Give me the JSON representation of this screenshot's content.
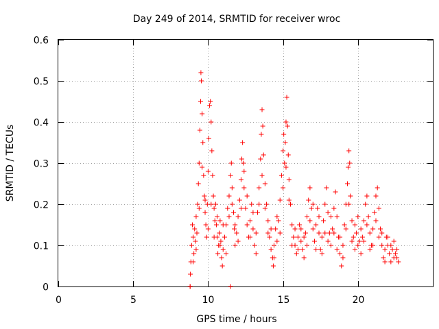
{
  "chart_data": {
    "type": "scatter",
    "title": "Day 249 of 2014, SRMTID for receiver wroc",
    "xlabel": "GPS time / hours",
    "ylabel": "SRMTID / TECUs",
    "xlim": [
      0,
      25
    ],
    "ylim": [
      0,
      0.6
    ],
    "xticks": [
      0,
      5,
      10,
      15,
      20
    ],
    "xtick_labels": [
      "0",
      "5",
      "10",
      "15",
      "20"
    ],
    "yticks": [
      0,
      0.1,
      0.2,
      0.3,
      0.4,
      0.5,
      0.6
    ],
    "ytick_labels": [
      "0",
      "0.1",
      "0.2",
      "0.3",
      "0.4",
      "0.5",
      "0.6"
    ],
    "grid": true,
    "marker": "+",
    "color": "#ff0000",
    "series": [
      {
        "name": "SRMTID",
        "points": [
          [
            8.8,
            0.0
          ],
          [
            8.82,
            0.03
          ],
          [
            8.85,
            0.06
          ],
          [
            8.9,
            0.1
          ],
          [
            8.95,
            0.15
          ],
          [
            9.0,
            0.12
          ],
          [
            9.05,
            0.08
          ],
          [
            9.1,
            0.14
          ],
          [
            9.15,
            0.11
          ],
          [
            9.2,
            0.17
          ],
          [
            9.25,
            0.13
          ],
          [
            9.3,
            0.2
          ],
          [
            9.35,
            0.25
          ],
          [
            9.4,
            0.3
          ],
          [
            9.45,
            0.38
          ],
          [
            9.5,
            0.45
          ],
          [
            9.52,
            0.52
          ],
          [
            9.55,
            0.5
          ],
          [
            9.6,
            0.42
          ],
          [
            9.65,
            0.35
          ],
          [
            9.7,
            0.27
          ],
          [
            9.75,
            0.22
          ],
          [
            9.8,
            0.18
          ],
          [
            9.85,
            0.15
          ],
          [
            9.9,
            0.12
          ],
          [
            9.95,
            0.2
          ],
          [
            10.0,
            0.28
          ],
          [
            10.05,
            0.36
          ],
          [
            10.1,
            0.44
          ],
          [
            10.15,
            0.45
          ],
          [
            10.2,
            0.4
          ],
          [
            10.25,
            0.33
          ],
          [
            10.3,
            0.27
          ],
          [
            10.35,
            0.22
          ],
          [
            10.4,
            0.19
          ],
          [
            10.45,
            0.16
          ],
          [
            10.5,
            0.2
          ],
          [
            10.55,
            0.15
          ],
          [
            10.6,
            0.12
          ],
          [
            10.65,
            0.08
          ],
          [
            10.7,
            0.1
          ],
          [
            10.75,
            0.13
          ],
          [
            10.8,
            0.16
          ],
          [
            10.85,
            0.11
          ],
          [
            10.9,
            0.07
          ],
          [
            10.95,
            0.05
          ],
          [
            11.0,
            0.09
          ],
          [
            11.1,
            0.12
          ],
          [
            11.2,
            0.15
          ],
          [
            11.3,
            0.19
          ],
          [
            11.4,
            0.22
          ],
          [
            11.5,
            0.27
          ],
          [
            11.55,
            0.3
          ],
          [
            11.6,
            0.24
          ],
          [
            11.7,
            0.18
          ],
          [
            11.75,
            0.14
          ],
          [
            11.8,
            0.1
          ],
          [
            11.9,
            0.13
          ],
          [
            12.0,
            0.17
          ],
          [
            12.1,
            0.21
          ],
          [
            12.2,
            0.26
          ],
          [
            12.25,
            0.31
          ],
          [
            12.3,
            0.35
          ],
          [
            12.35,
            0.3
          ],
          [
            12.4,
            0.24
          ],
          [
            12.5,
            0.19
          ],
          [
            12.6,
            0.15
          ],
          [
            12.7,
            0.12
          ],
          [
            12.8,
            0.16
          ],
          [
            12.9,
            0.2
          ],
          [
            13.0,
            0.14
          ],
          [
            13.1,
            0.1
          ],
          [
            13.2,
            0.13
          ],
          [
            13.3,
            0.18
          ],
          [
            13.4,
            0.24
          ],
          [
            13.5,
            0.31
          ],
          [
            13.55,
            0.37
          ],
          [
            13.6,
            0.43
          ],
          [
            13.65,
            0.39
          ],
          [
            13.7,
            0.32
          ],
          [
            13.8,
            0.25
          ],
          [
            13.9,
            0.2
          ],
          [
            14.0,
            0.16
          ],
          [
            14.1,
            0.12
          ],
          [
            14.2,
            0.09
          ],
          [
            14.3,
            0.07
          ],
          [
            14.35,
            0.05
          ],
          [
            14.4,
            0.1
          ],
          [
            14.5,
            0.14
          ],
          [
            14.6,
            0.11
          ],
          [
            14.7,
            0.16
          ],
          [
            14.8,
            0.21
          ],
          [
            14.9,
            0.27
          ],
          [
            15.0,
            0.33
          ],
          [
            15.05,
            0.37
          ],
          [
            15.1,
            0.3
          ],
          [
            15.15,
            0.35
          ],
          [
            15.2,
            0.4
          ],
          [
            15.25,
            0.46
          ],
          [
            15.3,
            0.39
          ],
          [
            15.35,
            0.32
          ],
          [
            15.4,
            0.26
          ],
          [
            15.5,
            0.2
          ],
          [
            15.6,
            0.15
          ],
          [
            15.7,
            0.12
          ],
          [
            15.8,
            0.1
          ],
          [
            15.9,
            0.08
          ],
          [
            16.0,
            0.12
          ],
          [
            16.1,
            0.15
          ],
          [
            16.2,
            0.11
          ],
          [
            16.3,
            0.09
          ],
          [
            16.4,
            0.07
          ],
          [
            16.5,
            0.13
          ],
          [
            16.6,
            0.17
          ],
          [
            16.7,
            0.21
          ],
          [
            16.8,
            0.24
          ],
          [
            16.9,
            0.19
          ],
          [
            17.0,
            0.14
          ],
          [
            17.1,
            0.11
          ],
          [
            17.2,
            0.15
          ],
          [
            17.3,
            0.19
          ],
          [
            17.4,
            0.13
          ],
          [
            17.5,
            0.09
          ],
          [
            17.6,
            0.12
          ],
          [
            17.7,
            0.16
          ],
          [
            17.8,
            0.2
          ],
          [
            17.9,
            0.24
          ],
          [
            18.0,
            0.18
          ],
          [
            18.1,
            0.13
          ],
          [
            18.2,
            0.1
          ],
          [
            18.3,
            0.14
          ],
          [
            18.4,
            0.19
          ],
          [
            18.5,
            0.23
          ],
          [
            18.6,
            0.17
          ],
          [
            18.7,
            0.12
          ],
          [
            18.8,
            0.08
          ],
          [
            18.9,
            0.05
          ],
          [
            19.0,
            0.1
          ],
          [
            19.1,
            0.15
          ],
          [
            19.2,
            0.2
          ],
          [
            19.3,
            0.25
          ],
          [
            19.35,
            0.29
          ],
          [
            19.4,
            0.33
          ],
          [
            19.45,
            0.3
          ],
          [
            19.5,
            0.22
          ],
          [
            19.6,
            0.16
          ],
          [
            19.7,
            0.12
          ],
          [
            19.8,
            0.09
          ],
          [
            19.9,
            0.13
          ],
          [
            20.0,
            0.17
          ],
          [
            20.1,
            0.11
          ],
          [
            20.2,
            0.08
          ],
          [
            20.3,
            0.12
          ],
          [
            20.4,
            0.16
          ],
          [
            20.5,
            0.2
          ],
          [
            20.6,
            0.22
          ],
          [
            20.7,
            0.17
          ],
          [
            20.8,
            0.13
          ],
          [
            20.9,
            0.1
          ],
          [
            21.0,
            0.14
          ],
          [
            21.1,
            0.18
          ],
          [
            21.2,
            0.22
          ],
          [
            21.3,
            0.24
          ],
          [
            21.4,
            0.19
          ],
          [
            21.5,
            0.14
          ],
          [
            21.6,
            0.1
          ],
          [
            21.7,
            0.07
          ],
          [
            21.8,
            0.09
          ],
          [
            21.9,
            0.12
          ],
          [
            22.0,
            0.1
          ],
          [
            22.1,
            0.08
          ],
          [
            22.2,
            0.06
          ],
          [
            22.3,
            0.09
          ],
          [
            22.4,
            0.11
          ],
          [
            22.5,
            0.08
          ],
          [
            22.6,
            0.07
          ],
          [
            22.7,
            0.06
          ],
          [
            9.0,
            0.06
          ],
          [
            9.2,
            0.09
          ],
          [
            9.4,
            0.19
          ],
          [
            9.6,
            0.29
          ],
          [
            9.8,
            0.21
          ],
          [
            10.0,
            0.14
          ],
          [
            10.2,
            0.2
          ],
          [
            10.4,
            0.12
          ],
          [
            10.6,
            0.17
          ],
          [
            10.8,
            0.1
          ],
          [
            11.0,
            0.15
          ],
          [
            11.2,
            0.08
          ],
          [
            11.4,
            0.17
          ],
          [
            11.6,
            0.2
          ],
          [
            11.8,
            0.15
          ],
          [
            12.0,
            0.11
          ],
          [
            12.2,
            0.19
          ],
          [
            12.4,
            0.28
          ],
          [
            12.6,
            0.22
          ],
          [
            12.8,
            0.12
          ],
          [
            13.0,
            0.18
          ],
          [
            13.2,
            0.08
          ],
          [
            13.4,
            0.2
          ],
          [
            13.6,
            0.27
          ],
          [
            13.8,
            0.19
          ],
          [
            14.0,
            0.13
          ],
          [
            14.2,
            0.14
          ],
          [
            14.4,
            0.07
          ],
          [
            14.6,
            0.17
          ],
          [
            14.8,
            0.13
          ],
          [
            15.0,
            0.24
          ],
          [
            15.2,
            0.29
          ],
          [
            15.4,
            0.21
          ],
          [
            15.6,
            0.1
          ],
          [
            15.8,
            0.14
          ],
          [
            16.0,
            0.09
          ],
          [
            16.2,
            0.14
          ],
          [
            16.4,
            0.12
          ],
          [
            16.6,
            0.1
          ],
          [
            16.8,
            0.16
          ],
          [
            17.0,
            0.2
          ],
          [
            17.2,
            0.09
          ],
          [
            17.4,
            0.17
          ],
          [
            17.6,
            0.08
          ],
          [
            17.8,
            0.13
          ],
          [
            18.0,
            0.11
          ],
          [
            18.2,
            0.17
          ],
          [
            18.4,
            0.13
          ],
          [
            18.6,
            0.09
          ],
          [
            18.8,
            0.12
          ],
          [
            19.0,
            0.07
          ],
          [
            19.2,
            0.14
          ],
          [
            19.4,
            0.2
          ],
          [
            19.6,
            0.11
          ],
          [
            19.8,
            0.15
          ],
          [
            20.0,
            0.1
          ],
          [
            20.2,
            0.14
          ],
          [
            20.4,
            0.11
          ],
          [
            20.6,
            0.15
          ],
          [
            20.8,
            0.09
          ],
          [
            21.0,
            0.1
          ],
          [
            21.2,
            0.16
          ],
          [
            21.4,
            0.12
          ],
          [
            21.6,
            0.13
          ],
          [
            21.8,
            0.06
          ],
          [
            22.0,
            0.12
          ],
          [
            22.2,
            0.1
          ],
          [
            22.4,
            0.07
          ],
          [
            22.6,
            0.09
          ],
          [
            11.5,
            0.0
          ],
          [
            8.8,
            0.0
          ]
        ]
      }
    ]
  }
}
